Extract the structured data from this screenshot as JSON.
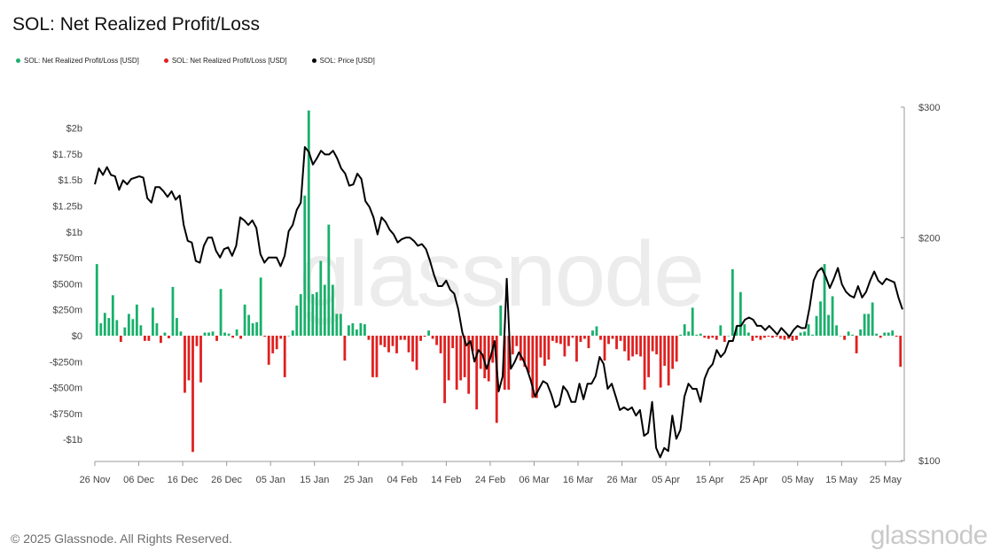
{
  "title": "SOL: Net Realized Profit/Loss",
  "legend": [
    {
      "label": "SOL: Net Realized Profit/Loss [USD]",
      "color": "#19b06b"
    },
    {
      "label": "SOL: Net Realized Profit/Loss [USD]",
      "color": "#e02020"
    },
    {
      "label": "SOL: Price [USD]",
      "color": "#000000"
    }
  ],
  "footer": "© 2025 Glassnode. All Rights Reserved.",
  "brand": "glassnode",
  "watermark": "glassnode",
  "chart_data": {
    "type": "bar",
    "title": "SOL: Net Realized Profit/Loss",
    "x_tick_labels": [
      "26 Nov",
      "06 Dec",
      "16 Dec",
      "26 Dec",
      "05 Jan",
      "15 Jan",
      "25 Jan",
      "04 Feb",
      "14 Feb",
      "24 Feb",
      "06 Mar",
      "16 Mar",
      "26 Mar",
      "05 Apr",
      "15 Apr",
      "25 Apr",
      "05 May",
      "15 May",
      "25 May"
    ],
    "y_left_ticks": [
      "$2b",
      "$1.75b",
      "$1.5b",
      "$1.25b",
      "$1b",
      "$750m",
      "$500m",
      "$250m",
      "$0",
      "-$250m",
      "-$500m",
      "-$750m",
      "-$1b"
    ],
    "y_left_range_usd": [
      -1100000000.0,
      2200000000.0
    ],
    "y_right_ticks": [
      "$300",
      "$200",
      "$100"
    ],
    "y_right_range_usd": [
      100,
      300
    ],
    "y_right_scale": "log",
    "x_start": "2024-11-26",
    "x_end": "2025-05-31",
    "series": [
      {
        "name": "SOL: Net Realized Profit/Loss [USD]",
        "kind": "bar",
        "positive_color": "#19b06b",
        "negative_color": "#e02020",
        "values_musd": [
          690,
          120,
          220,
          170,
          390,
          150,
          -60,
          80,
          210,
          160,
          300,
          100,
          -50,
          -50,
          270,
          120,
          -70,
          30,
          -25,
          470,
          170,
          40,
          -550,
          -430,
          -1120,
          -100,
          -450,
          30,
          30,
          40,
          -50,
          450,
          30,
          20,
          -20,
          60,
          -30,
          300,
          200,
          120,
          130,
          560,
          -10,
          -280,
          -170,
          -130,
          -30,
          -400,
          0,
          50,
          290,
          400,
          1350,
          2170,
          400,
          420,
          720,
          490,
          1070,
          490,
          210,
          210,
          -240,
          100,
          120,
          60,
          120,
          110,
          -40,
          -400,
          -400,
          -90,
          -110,
          -160,
          -100,
          -170,
          -40,
          -40,
          -160,
          -250,
          -330,
          -50,
          -10,
          50,
          -30,
          -90,
          -170,
          -650,
          -430,
          -120,
          -520,
          -430,
          -400,
          -560,
          -150,
          -710,
          -320,
          -410,
          -440,
          -260,
          -840,
          290,
          -520,
          -520,
          -180,
          -100,
          -240,
          -300,
          -360,
          -600,
          -600,
          -210,
          -290,
          -230,
          -50,
          -70,
          -80,
          -200,
          -100,
          -20,
          -250,
          -60,
          -30,
          -120,
          50,
          90,
          -40,
          -240,
          -80,
          -30,
          -130,
          -50,
          -150,
          -240,
          -200,
          -180,
          -200,
          -520,
          -400,
          -150,
          -180,
          -500,
          -290,
          -480,
          -320,
          -250,
          10,
          110,
          40,
          270,
          10,
          20,
          -20,
          -30,
          -20,
          -40,
          100,
          -60,
          0,
          640,
          90,
          420,
          110,
          30,
          -50,
          -20,
          -40,
          -20,
          -10,
          -20,
          -10,
          -30,
          -40,
          -30,
          -50,
          -40,
          30,
          40,
          110,
          10,
          190,
          330,
          690,
          200,
          380,
          100,
          0,
          -40,
          40,
          10,
          -170,
          60,
          210,
          210,
          320,
          20,
          -20,
          30,
          30,
          50,
          -10,
          -300
        ]
      },
      {
        "name": "SOL: Price [USD]",
        "kind": "line",
        "color": "#000000",
        "values_usd": [
          236,
          248,
          243,
          249,
          243,
          242,
          232,
          239,
          236,
          240,
          241,
          242,
          241,
          226,
          223,
          234,
          234,
          231,
          227,
          231,
          225,
          228,
          208,
          198,
          197,
          186,
          185,
          195,
          200,
          200,
          192,
          188,
          193,
          194,
          189,
          195,
          213,
          211,
          208,
          211,
          206,
          190,
          185,
          188,
          188,
          188,
          183,
          189,
          204,
          208,
          218,
          223,
          265,
          261,
          251,
          256,
          262,
          259,
          259,
          262,
          256,
          248,
          244,
          235,
          236,
          244,
          240,
          224,
          220,
          213,
          202,
          213,
          210,
          205,
          202,
          197,
          199,
          200,
          200,
          198,
          195,
          196,
          193,
          186,
          178,
          172,
          172,
          175,
          170,
          168,
          160,
          149,
          143,
          145,
          136,
          141,
          139,
          133,
          138,
          145,
          124,
          130,
          176,
          133,
          136,
          140,
          137,
          133,
          128,
          122,
          125,
          128,
          127,
          123,
          118,
          119,
          126,
          124,
          120,
          120,
          127,
          121,
          127,
          127,
          130,
          138,
          135,
          125,
          127,
          122,
          117,
          118,
          117,
          118,
          115,
          117,
          108,
          109,
          120,
          104,
          101,
          104,
          103,
          115,
          107,
          110,
          122,
          127,
          125,
          125,
          120,
          129,
          133,
          135,
          141,
          138,
          140,
          145,
          145,
          152,
          152,
          155,
          156,
          155,
          152,
          152,
          150,
          152,
          150,
          148,
          151,
          149,
          147,
          150,
          152,
          151,
          151,
          161,
          175,
          180,
          182,
          177,
          171,
          176,
          182,
          173,
          169,
          167,
          166,
          172,
          166,
          169,
          175,
          180,
          175,
          173,
          176,
          175,
          174,
          166,
          160
        ],
        "line_series": "price"
      }
    ],
    "grid": false,
    "legend_position": "top-left"
  }
}
